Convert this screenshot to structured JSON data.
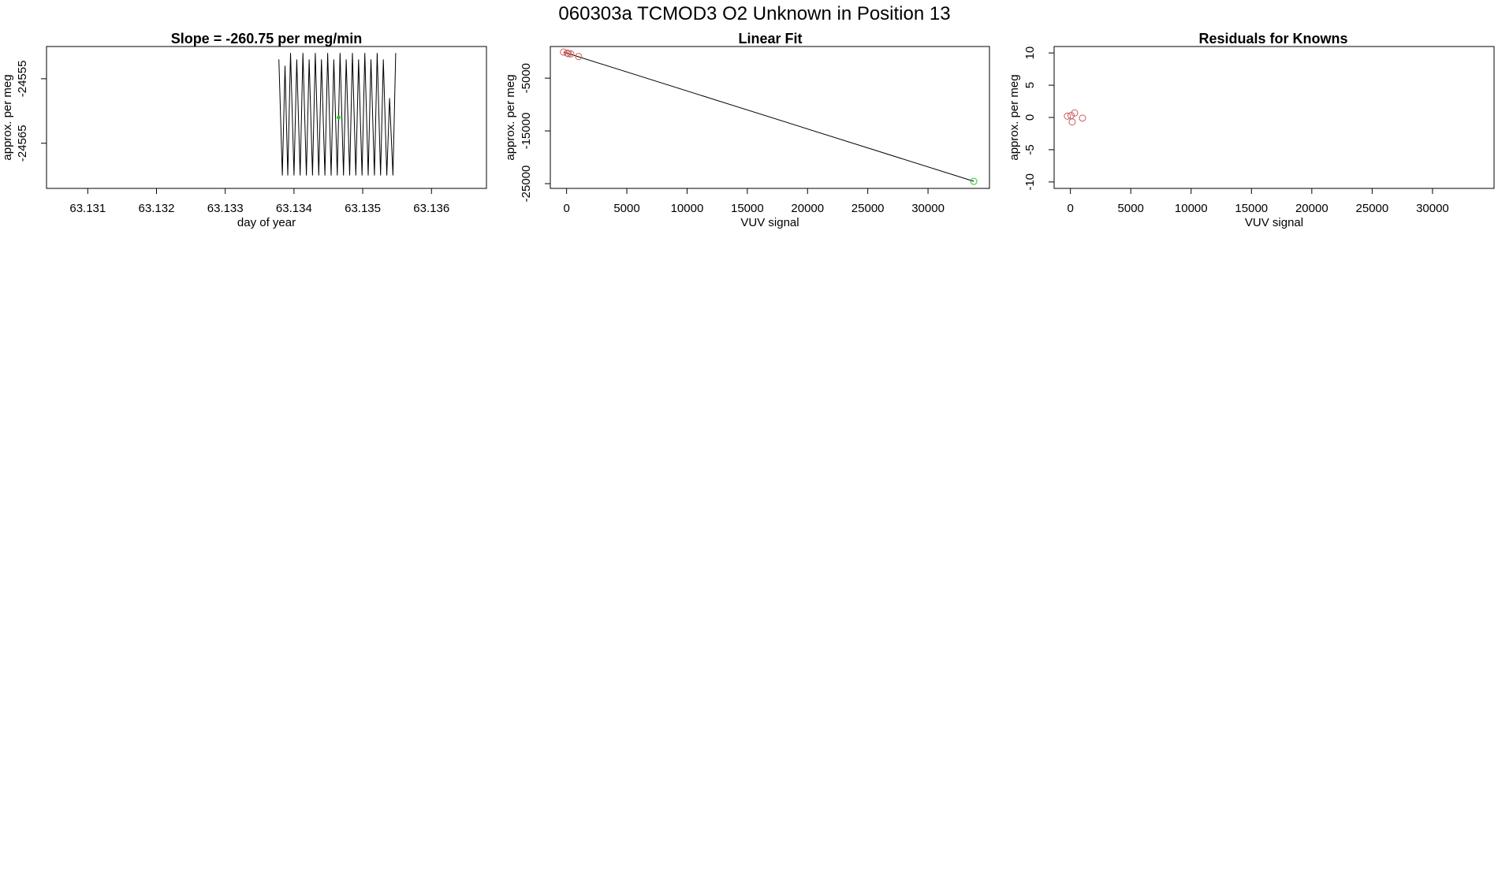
{
  "main_title": "060303a      TCMOD3   O2 Unknown in Position  13",
  "colors": {
    "frame": "#000000",
    "line": "#000000",
    "known_points": "#cd5c5c",
    "unknown_point": "#22cc22"
  },
  "chart_data": [
    {
      "type": "line",
      "title": "Slope =  -260.75  per meg/min",
      "xlabel": "day of year",
      "ylabel": "approx. per meg",
      "xlim": [
        63.1304,
        63.1368
      ],
      "ylim": [
        -24572,
        -24550
      ],
      "x_ticks": [
        "63.131",
        "63.132",
        "63.133",
        "63.134",
        "63.135",
        "63.136"
      ],
      "x_tick_values": [
        63.131,
        63.132,
        63.133,
        63.134,
        63.135,
        63.136
      ],
      "y_ticks": [
        "-24565",
        "-24555"
      ],
      "y_tick_values": [
        -24565,
        -24555
      ],
      "grid": false,
      "series": [
        {
          "values_description_free": true,
          "x": [
            63.13378,
            63.13383,
            63.13387,
            63.13391,
            63.13395,
            63.134,
            63.13404,
            63.13409,
            63.13413,
            63.13418,
            63.13422,
            63.13427,
            63.13431,
            63.13436,
            63.1344,
            63.13445,
            63.13449,
            63.13454,
            63.13458,
            63.13463,
            63.13467,
            63.13472,
            63.13476,
            63.13481,
            63.13485,
            63.1349,
            63.13494,
            63.13499,
            63.13503,
            63.13508,
            63.13512,
            63.13517,
            63.13521,
            63.13526,
            63.1353,
            63.13535,
            63.13539,
            63.13544,
            63.13548
          ],
          "y": [
            -24552,
            -24570,
            -24553,
            -24570,
            -24551,
            -24570,
            -24552,
            -24570,
            -24551,
            -24570,
            -24552,
            -24570,
            -24551,
            -24570,
            -24552,
            -24570,
            -24551,
            -24570,
            -24552,
            -24570,
            -24551,
            -24570,
            -24552,
            -24570,
            -24551,
            -24570,
            -24552,
            -24570,
            -24551,
            -24570,
            -24552,
            -24570,
            -24551,
            -24570,
            -24552,
            -24570,
            -24558,
            -24570,
            -24551
          ]
        }
      ],
      "highlight_point": {
        "x": 63.13465,
        "y": -24561
      }
    },
    {
      "type": "scatter",
      "title": "Linear Fit",
      "xlabel": "VUV signal",
      "ylabel": "approx. per meg",
      "xlim": [
        -1350,
        35100
      ],
      "ylim": [
        -25900,
        1000
      ],
      "x_ticks": [
        "0",
        "5000",
        "10000",
        "15000",
        "20000",
        "25000",
        "30000"
      ],
      "x_tick_values": [
        0,
        5000,
        10000,
        15000,
        20000,
        25000,
        30000
      ],
      "y_ticks": [
        "-25000",
        "-15000",
        "-5000"
      ],
      "y_tick_values": [
        -25000,
        -15000,
        -5000
      ],
      "grid": false,
      "known_points": {
        "x": [
          -250,
          50,
          150,
          350,
          1000
        ],
        "y": [
          -50,
          -250,
          -350,
          -400,
          -900
        ]
      },
      "fit_line": {
        "x": [
          -250,
          33800
        ],
        "y": [
          -50,
          -24560
        ]
      },
      "unknown_point": {
        "x": 33800,
        "y": -24560
      }
    },
    {
      "type": "scatter",
      "title": "Residuals for Knowns",
      "xlabel": "VUV signal",
      "ylabel": "approx. per meg",
      "xlim": [
        -1350,
        35100
      ],
      "ylim": [
        -11,
        11
      ],
      "x_ticks": [
        "0",
        "5000",
        "10000",
        "15000",
        "20000",
        "25000",
        "30000"
      ],
      "x_tick_values": [
        0,
        5000,
        10000,
        15000,
        20000,
        25000,
        30000
      ],
      "y_ticks": [
        "-10",
        "-5",
        "0",
        "5",
        "10"
      ],
      "y_tick_values": [
        -10,
        -5,
        0,
        5,
        10
      ],
      "grid": false,
      "known_points": {
        "x": [
          -250,
          50,
          150,
          350,
          1000
        ],
        "y": [
          0.2,
          0.3,
          -0.7,
          0.7,
          -0.1
        ]
      }
    }
  ]
}
